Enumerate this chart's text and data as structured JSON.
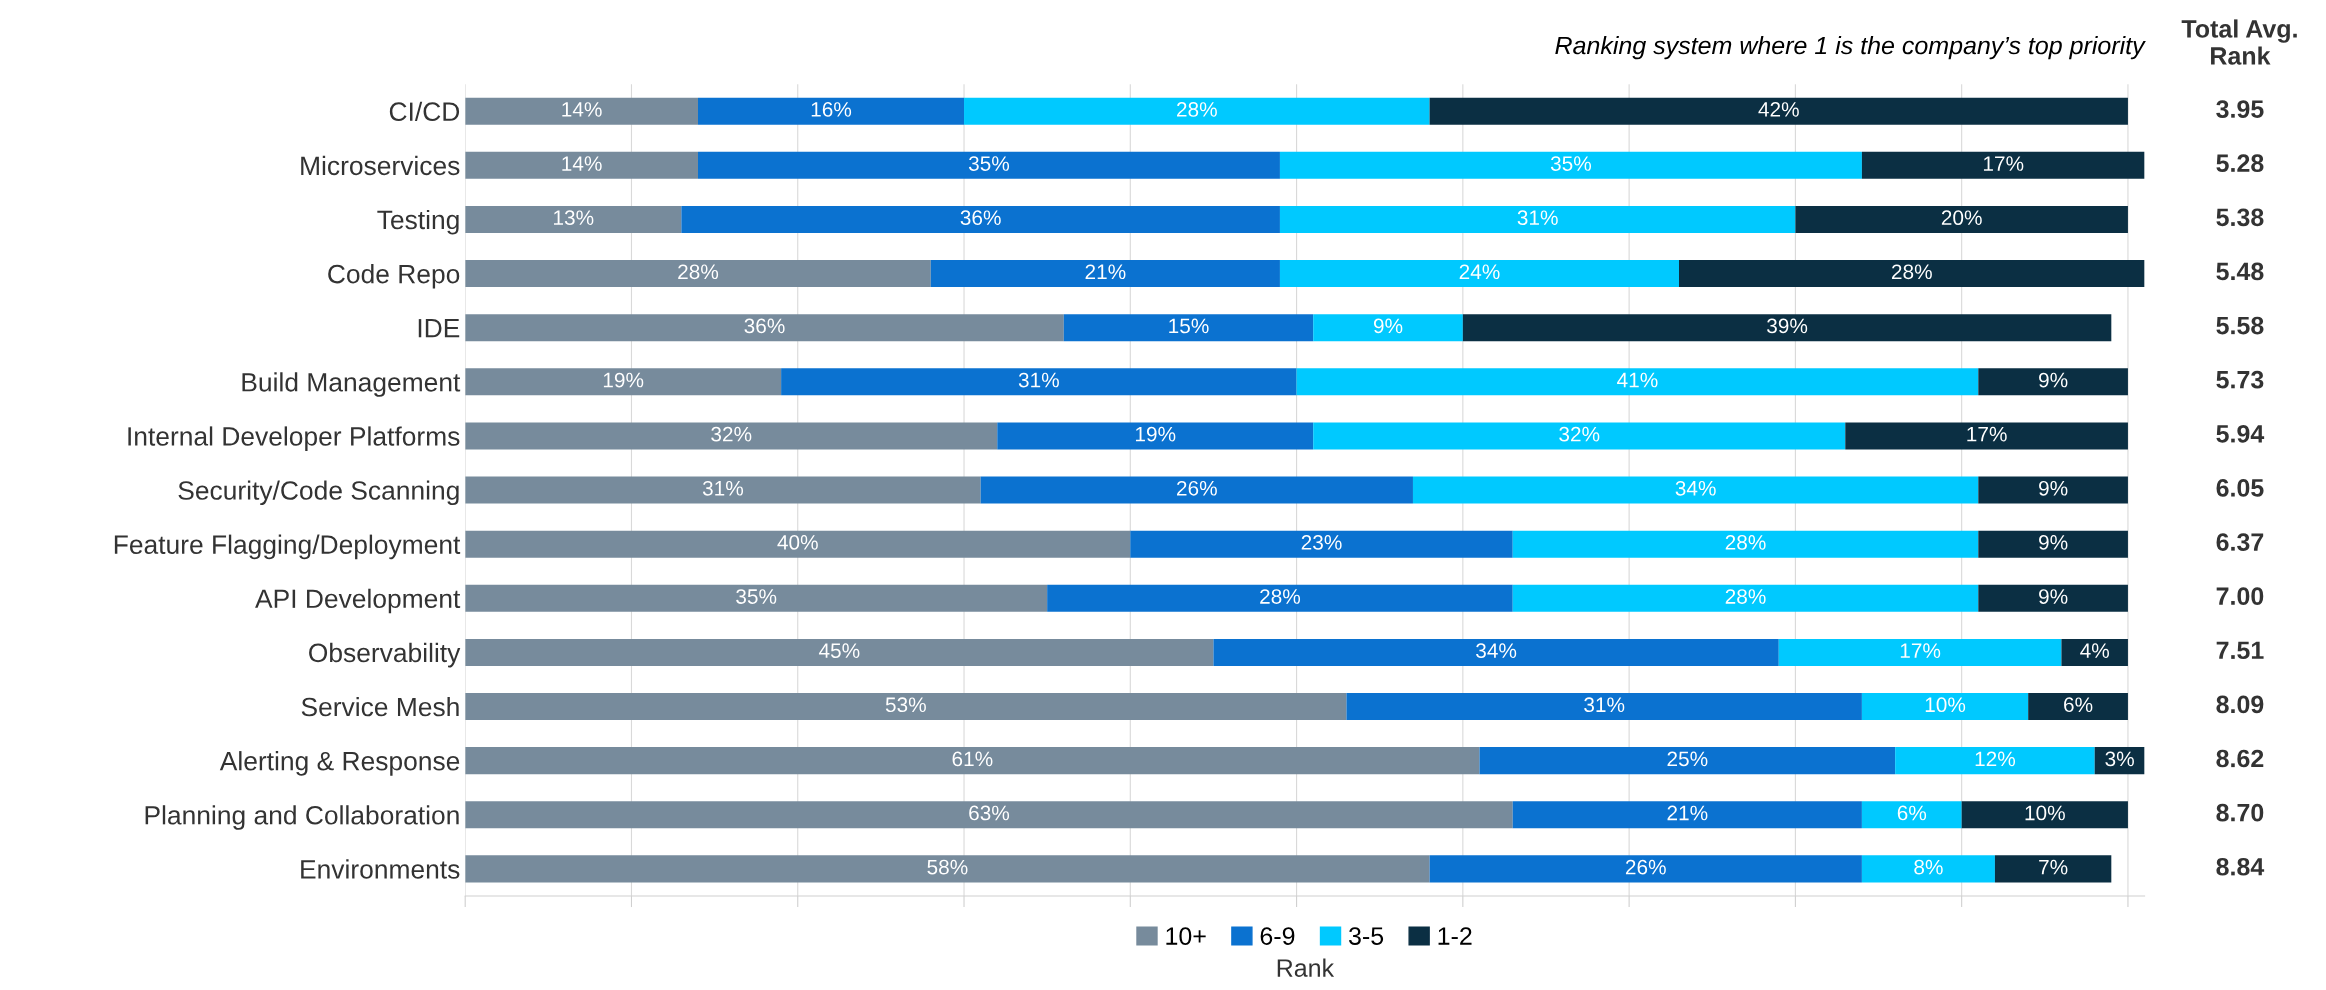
{
  "chart_data": {
    "type": "bar",
    "orientation": "horizontal",
    "stacked": true,
    "subtitle": "Ranking system where 1 is the company’s top priority",
    "categories": [
      "CI/CD",
      "Microservices",
      "Testing",
      "Code Repo",
      "IDE",
      "Build Management",
      "Internal Developer Platforms",
      "Security/Code Scanning",
      "Feature Flagging/Deployment",
      "API Development",
      "Observability",
      "Service Mesh",
      "Alerting & Response",
      "Planning and Collaboration",
      "Environments"
    ],
    "series": [
      {
        "name": "10+",
        "color": "#778b9c",
        "values": [
          14,
          14,
          13,
          28,
          36,
          19,
          32,
          31,
          40,
          35,
          45,
          53,
          61,
          63,
          58
        ],
        "value_labels": [
          "14%",
          "14%",
          "13%",
          "28%",
          "36%",
          "19%",
          "32%",
          "31%",
          "40%",
          "35%",
          "45%",
          "53%",
          "61%",
          "63%",
          "58%"
        ]
      },
      {
        "name": "6-9",
        "color": "#0b72d0",
        "values": [
          16,
          35,
          36,
          21,
          15,
          31,
          19,
          26,
          23,
          28,
          34,
          31,
          25,
          21,
          26
        ],
        "value_labels": [
          "16%",
          "35%",
          "36%",
          "21%",
          "15%",
          "31%",
          "19%",
          "26%",
          "23%",
          "28%",
          "34%",
          "31%",
          "25%",
          "21%",
          "26%"
        ]
      },
      {
        "name": "3-5",
        "color": "#00c9ff",
        "values": [
          28,
          35,
          31,
          24,
          9,
          41,
          32,
          34,
          28,
          28,
          17,
          10,
          12,
          6,
          8
        ],
        "value_labels": [
          "28%",
          "35%",
          "31%",
          "24%",
          "9%",
          "41%",
          "32%",
          "34%",
          "28%",
          "28%",
          "17%",
          "10%",
          "12%",
          "6%",
          "8%"
        ]
      },
      {
        "name": "1-2",
        "color": "#0b2f43",
        "values": [
          42,
          17,
          20,
          28,
          39,
          9,
          17,
          9,
          9,
          9,
          4,
          6,
          3,
          10,
          7
        ],
        "value_labels": [
          "42%",
          "17%",
          "20%",
          "28%",
          "39%",
          "9%",
          "17%",
          "9%",
          "9%",
          "9%",
          "4%",
          "6%",
          "3%",
          "10%",
          "7%"
        ]
      }
    ],
    "xlim": [
      0,
      101
    ],
    "xticks": [
      {
        "value": 0,
        "label": null
      },
      {
        "value": 10,
        "label": null
      },
      {
        "value": 20,
        "label": null
      },
      {
        "value": 30,
        "label": null
      },
      {
        "value": 40,
        "label": null
      },
      {
        "value": 50,
        "label": null
      },
      {
        "value": 60,
        "label": null
      },
      {
        "value": 70,
        "label": null
      },
      {
        "value": 80,
        "label": null
      },
      {
        "value": 90,
        "label": null
      },
      {
        "value": 100,
        "label": null
      }
    ],
    "tick_labels": "y",
    "grid": "x",
    "legend": "bottom",
    "legend_title": "Rank",
    "annotations": [
      "Total Avg. Rank",
      "3.95",
      "5.28",
      "5.38",
      "5.48",
      "5.58",
      "5.73",
      "5.94",
      "6.05",
      "6.37",
      "7.00",
      "7.51",
      "8.09",
      "8.62",
      "8.70",
      "8.84"
    ]
  }
}
